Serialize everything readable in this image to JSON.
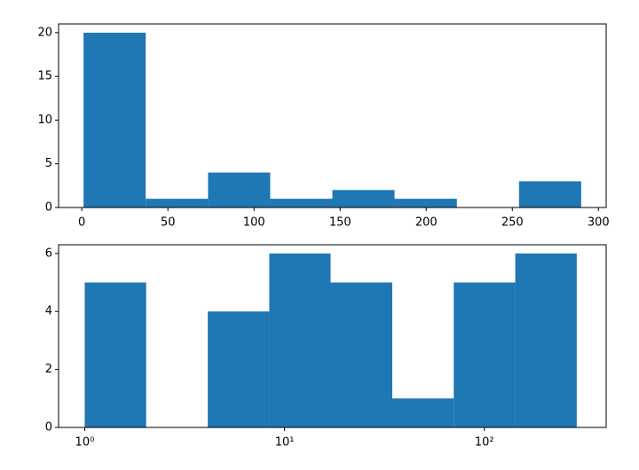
{
  "chart_data": [
    {
      "type": "histogram",
      "color": "#1f77b4",
      "bins": [
        1,
        37.1,
        73.3,
        109.4,
        145.5,
        181.6,
        217.8,
        253.9,
        290
      ],
      "values": [
        20,
        1,
        4,
        1,
        2,
        1,
        0,
        3
      ],
      "xlim": [
        -13.5,
        304.5
      ],
      "xticks": [
        0,
        50,
        100,
        150,
        200,
        250,
        300
      ],
      "ylim": [
        0,
        21
      ],
      "yticks": [
        0,
        5,
        10,
        15,
        20
      ],
      "xscale": "linear"
    },
    {
      "type": "histogram",
      "color": "#1f77b4",
      "bins": [
        1,
        2.03,
        4.13,
        8.39,
        17.0,
        34.6,
        70.3,
        142.8,
        290
      ],
      "values": [
        5,
        0,
        4,
        6,
        5,
        1,
        5,
        6
      ],
      "xlim": [
        0.74,
        407
      ],
      "xticks": [
        {
          "value": 1,
          "label": "10⁰"
        },
        {
          "value": 10,
          "label": "10¹"
        },
        {
          "value": 100,
          "label": "10²"
        }
      ],
      "ylim": [
        0,
        6.3
      ],
      "yticks": [
        0,
        2,
        4,
        6
      ],
      "xscale": "log"
    }
  ]
}
